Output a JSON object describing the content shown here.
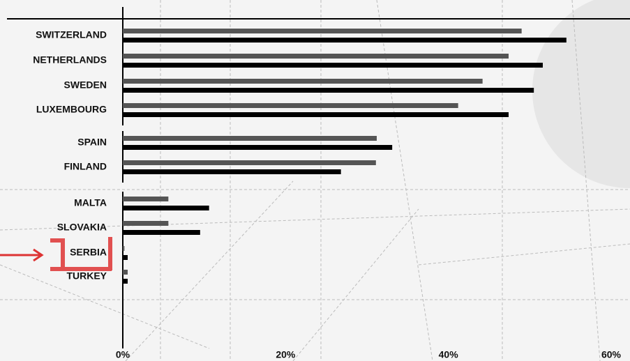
{
  "chart_data": {
    "type": "hbar",
    "categories": [
      "SWITZERLAND",
      "NETHERLANDS",
      "SWEDEN",
      "LUXEMBOURG",
      "SPAIN",
      "FINLAND",
      "MALTA",
      "SLOVAKIA",
      "SERBIA",
      "TURKEY"
    ],
    "series": [
      {
        "color": "#555555",
        "values": [
          49,
          47.4,
          44.2,
          41.2,
          31.2,
          31.1,
          5.6,
          5.6,
          0.2,
          0.6
        ]
      },
      {
        "color": "#000000",
        "values": [
          54.5,
          51.6,
          50.5,
          47.4,
          33.1,
          26.8,
          10.6,
          9.5,
          0.6,
          0.6
        ]
      }
    ],
    "xlim": [
      0,
      60
    ],
    "xticks": [
      {
        "value": 0,
        "label": "0%"
      },
      {
        "value": 20,
        "label": "20%"
      },
      {
        "value": 40,
        "label": "40%"
      },
      {
        "value": 60,
        "label": "60%"
      }
    ]
  }
}
